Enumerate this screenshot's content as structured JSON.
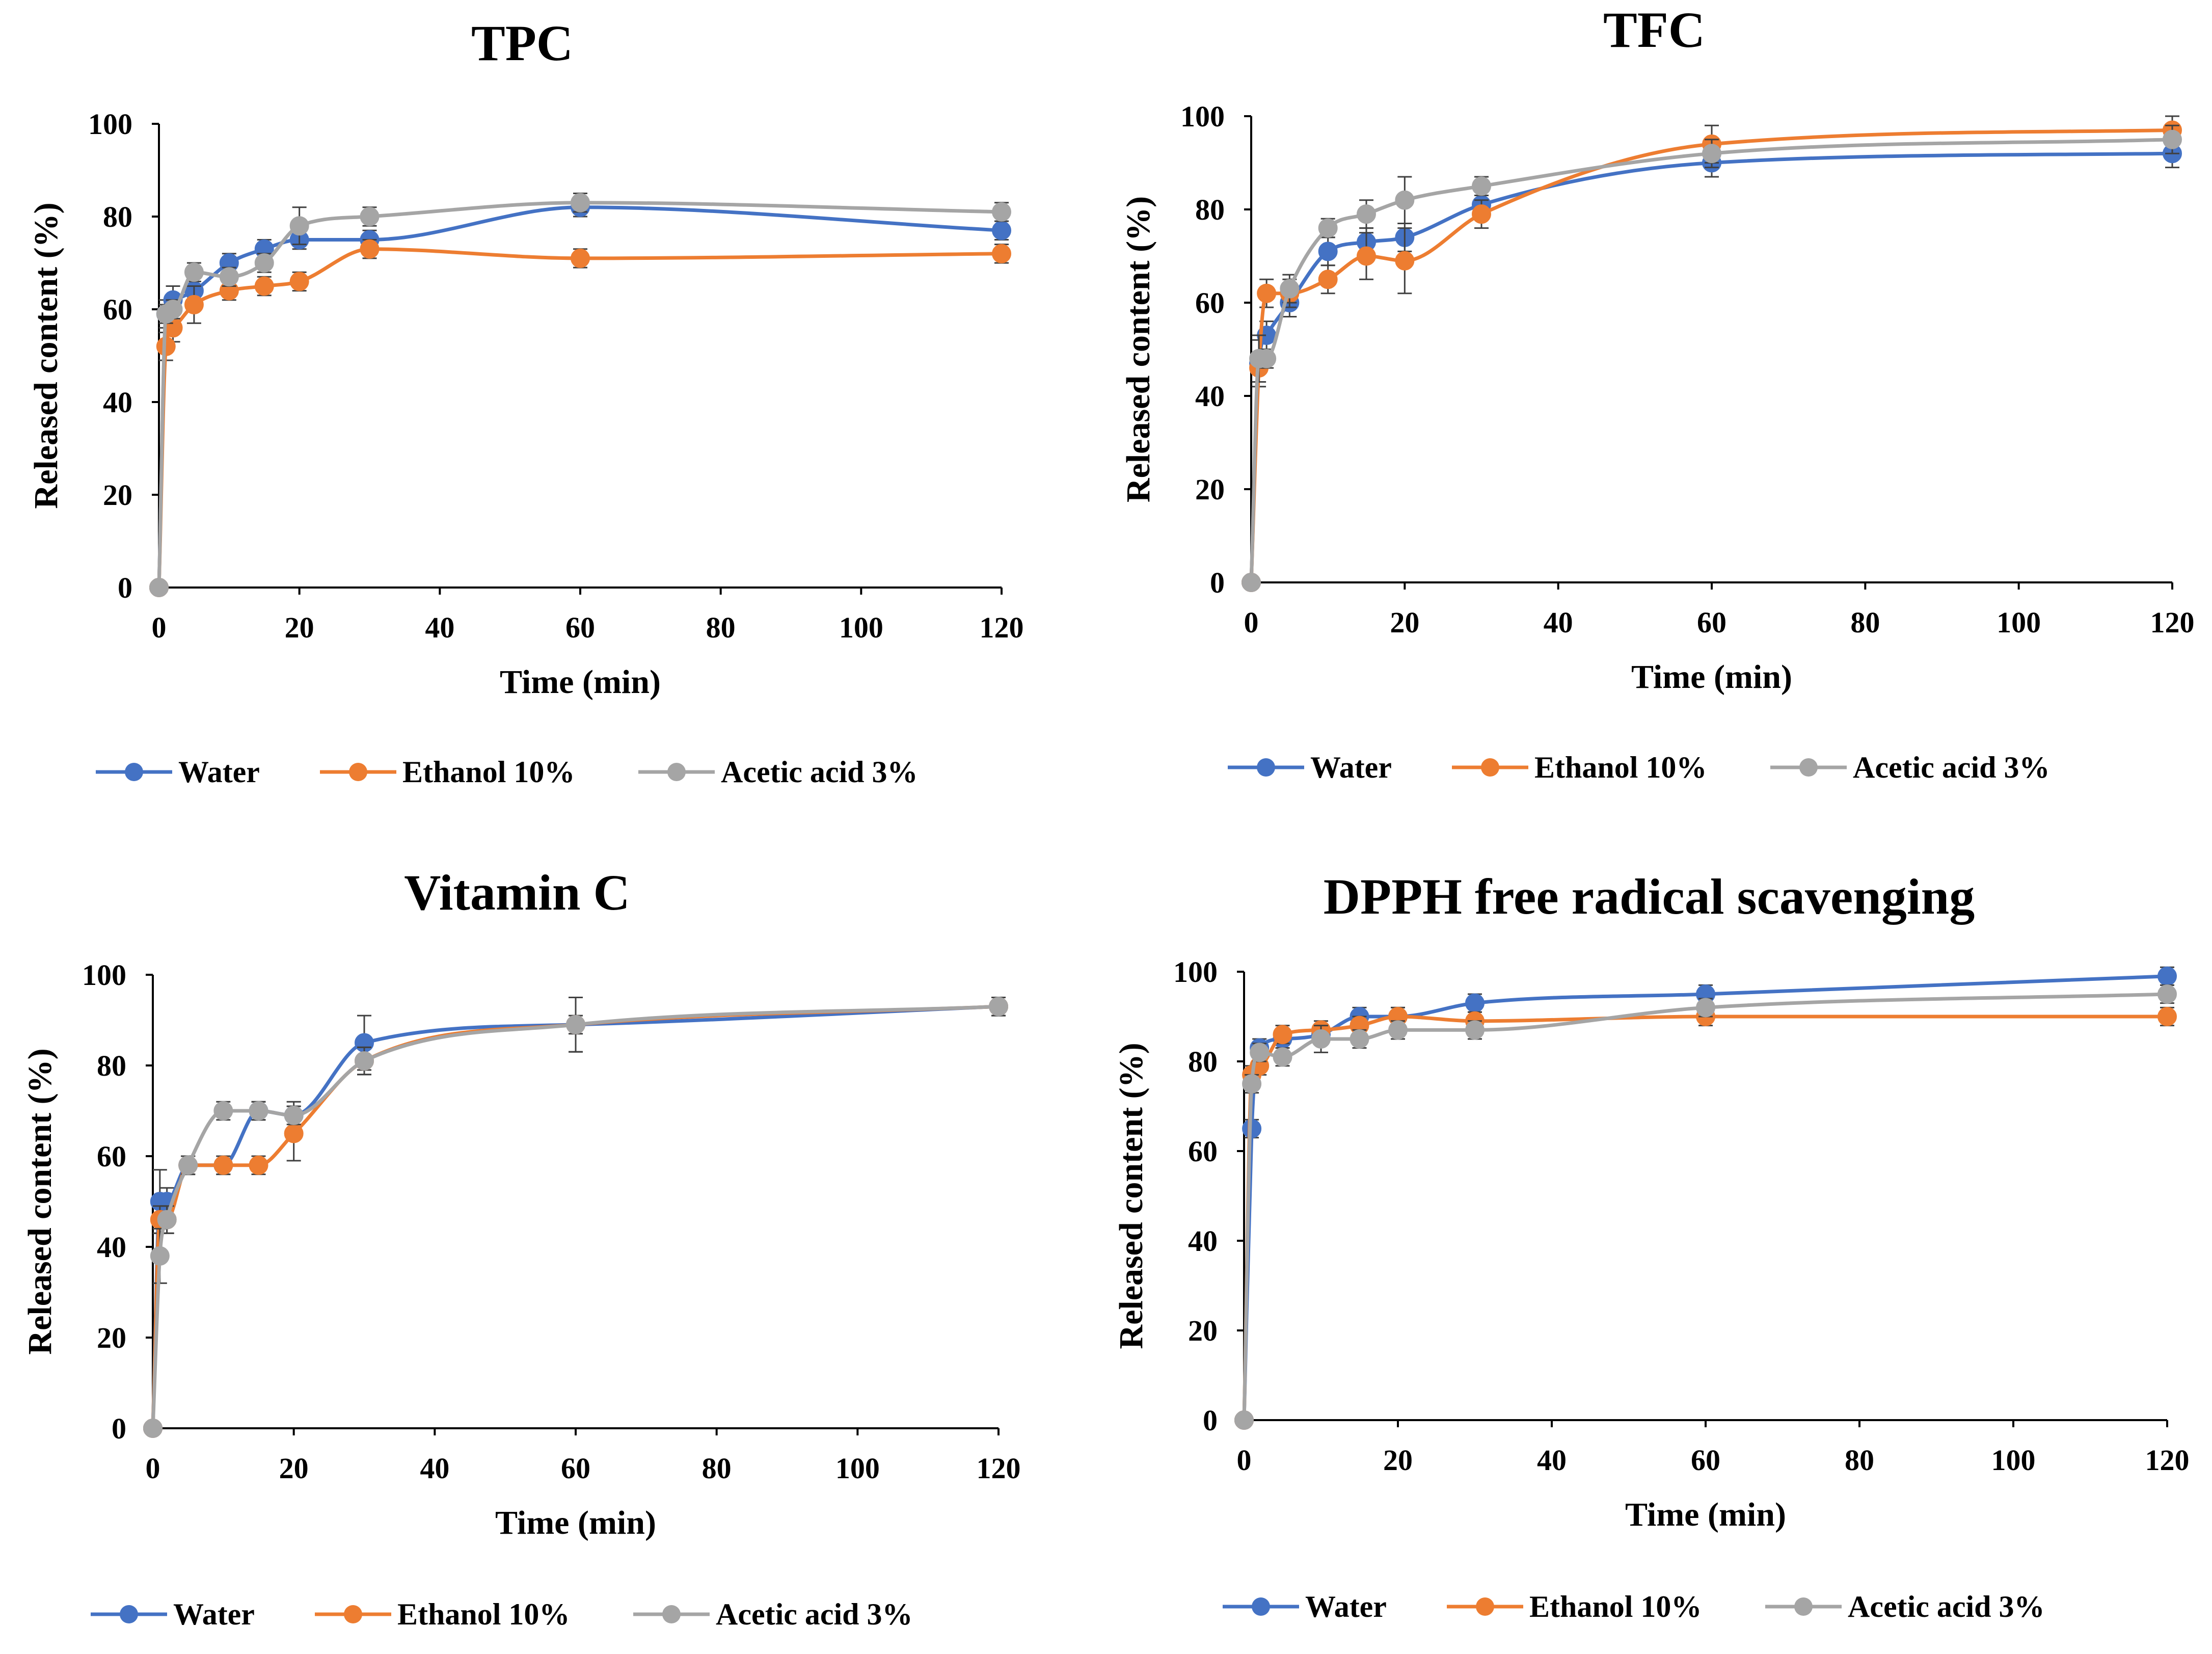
{
  "series_colors": {
    "Water": "#4472c4",
    "Ethanol 10%": "#ed7d31",
    "Acetic acid 3%": "#a5a5a5"
  },
  "chart_data": [
    {
      "type": "line",
      "title": "TPC",
      "xlabel": "Time (min)",
      "ylabel": "Released content (%)",
      "xlim": [
        0,
        120
      ],
      "ylim": [
        0,
        100
      ],
      "xticks": [
        0,
        20,
        40,
        60,
        80,
        100,
        120
      ],
      "yticks": [
        0,
        20,
        40,
        60,
        80,
        100
      ],
      "legend": [
        "Water",
        "Ethanol 10%",
        "Acetic acid 3%"
      ],
      "legend_position": "bottom",
      "series": [
        {
          "name": "Water",
          "x": [
            0,
            1,
            2,
            5,
            10,
            15,
            20,
            30,
            60,
            120
          ],
          "y": [
            0,
            59,
            62,
            64,
            70,
            73,
            75,
            75,
            82,
            77
          ],
          "err": [
            0,
            3,
            3,
            3,
            2,
            2,
            2,
            2,
            2,
            2
          ]
        },
        {
          "name": "Ethanol 10%",
          "x": [
            0,
            1,
            2,
            5,
            10,
            15,
            20,
            30,
            60,
            120
          ],
          "y": [
            0,
            52,
            56,
            61,
            64,
            65,
            66,
            73,
            71,
            72
          ],
          "err": [
            0,
            3,
            3,
            4,
            2,
            2,
            2,
            2,
            2,
            2
          ]
        },
        {
          "name": "Acetic acid 3%",
          "x": [
            0,
            1,
            2,
            5,
            10,
            15,
            20,
            30,
            60,
            120
          ],
          "y": [
            0,
            59,
            60,
            68,
            67,
            70,
            78,
            80,
            83,
            81
          ],
          "err": [
            0,
            2,
            2,
            2,
            2,
            2,
            4,
            2,
            2,
            2
          ]
        }
      ]
    },
    {
      "type": "line",
      "title": "TFC",
      "xlabel": "Time (min)",
      "ylabel": "Released content (%)",
      "xlim": [
        0,
        120
      ],
      "ylim": [
        0,
        100
      ],
      "xticks": [
        0,
        20,
        40,
        60,
        80,
        100,
        120
      ],
      "yticks": [
        0,
        20,
        40,
        60,
        80,
        100
      ],
      "legend": [
        "Water",
        "Ethanol 10%",
        "Acetic acid 3%"
      ],
      "legend_position": "bottom",
      "series": [
        {
          "name": "Water",
          "x": [
            0,
            1,
            2,
            5,
            10,
            15,
            20,
            30,
            60,
            120
          ],
          "y": [
            0,
            47,
            53,
            60,
            71,
            73,
            74,
            81,
            90,
            92
          ],
          "err": [
            0,
            5,
            3,
            3,
            3,
            3,
            3,
            3,
            3,
            3
          ]
        },
        {
          "name": "Ethanol 10%",
          "x": [
            0,
            1,
            2,
            5,
            10,
            15,
            20,
            30,
            60,
            120
          ],
          "y": [
            0,
            46,
            62,
            62,
            65,
            70,
            69,
            79,
            94,
            97
          ],
          "err": [
            0,
            3,
            3,
            3,
            3,
            5,
            7,
            3,
            4,
            3
          ]
        },
        {
          "name": "Acetic acid 3%",
          "x": [
            0,
            1,
            2,
            5,
            10,
            15,
            20,
            30,
            60,
            120
          ],
          "y": [
            0,
            48,
            48,
            63,
            76,
            79,
            82,
            85,
            92,
            95
          ],
          "err": [
            0,
            5,
            2,
            3,
            2,
            3,
            5,
            2,
            3,
            3
          ]
        }
      ]
    },
    {
      "type": "line",
      "title": "Vitamin C",
      "xlabel": "Time (min)",
      "ylabel": "Released content (%)",
      "xlim": [
        0,
        120
      ],
      "ylim": [
        0,
        100
      ],
      "xticks": [
        0,
        20,
        40,
        60,
        80,
        100,
        120
      ],
      "yticks": [
        0,
        20,
        40,
        60,
        80,
        100
      ],
      "legend": [
        "Water",
        "Ethanol 10%",
        "Acetic acid 3%"
      ],
      "legend_position": "bottom",
      "series": [
        {
          "name": "Water",
          "x": [
            0,
            1,
            2,
            5,
            10,
            15,
            20,
            30,
            60,
            120
          ],
          "y": [
            0,
            50,
            50,
            58,
            58,
            70,
            69,
            85,
            89,
            93
          ],
          "err": [
            0,
            7,
            3,
            2,
            2,
            2,
            3,
            6,
            2,
            2
          ]
        },
        {
          "name": "Ethanol 10%",
          "x": [
            0,
            1,
            2,
            5,
            10,
            15,
            20,
            30,
            60,
            120
          ],
          "y": [
            0,
            46,
            46,
            58,
            58,
            58,
            65,
            81,
            89,
            93
          ],
          "err": [
            0,
            3,
            3,
            2,
            2,
            2,
            6,
            3,
            6,
            2
          ]
        },
        {
          "name": "Acetic acid 3%",
          "x": [
            0,
            1,
            2,
            5,
            10,
            15,
            20,
            30,
            60,
            120
          ],
          "y": [
            0,
            38,
            46,
            58,
            70,
            70,
            69,
            81,
            89,
            93
          ],
          "err": [
            0,
            6,
            3,
            2,
            2,
            2,
            2,
            3,
            6,
            2
          ]
        }
      ]
    },
    {
      "type": "line",
      "title": "DPPH free radical scavenging",
      "xlabel": "Time (min)",
      "ylabel": "Released content (%)",
      "xlim": [
        0,
        120
      ],
      "ylim": [
        0,
        100
      ],
      "xticks": [
        0,
        20,
        40,
        60,
        80,
        100,
        120
      ],
      "yticks": [
        0,
        20,
        40,
        60,
        80,
        100
      ],
      "legend": [
        "Water",
        "Ethanol 10%",
        "Acetic acid 3%"
      ],
      "legend_position": "bottom",
      "series": [
        {
          "name": "Water",
          "x": [
            0,
            1,
            2,
            5,
            10,
            15,
            20,
            30,
            60,
            120
          ],
          "y": [
            0,
            65,
            83,
            85,
            86,
            90,
            90,
            93,
            95,
            99
          ],
          "err": [
            0,
            2,
            2,
            2,
            2,
            2,
            2,
            2,
            2,
            2
          ]
        },
        {
          "name": "Ethanol 10%",
          "x": [
            0,
            1,
            2,
            5,
            10,
            15,
            20,
            30,
            60,
            120
          ],
          "y": [
            0,
            77,
            79,
            86,
            87,
            88,
            90,
            89,
            90,
            90
          ],
          "err": [
            0,
            2,
            2,
            2,
            2,
            2,
            2,
            2,
            2,
            2
          ]
        },
        {
          "name": "Acetic acid 3%",
          "x": [
            0,
            1,
            2,
            5,
            10,
            15,
            20,
            30,
            60,
            120
          ],
          "y": [
            0,
            75,
            82,
            81,
            85,
            85,
            87,
            87,
            92,
            95
          ],
          "err": [
            0,
            2,
            2,
            2,
            3,
            2,
            2,
            2,
            2,
            2
          ]
        }
      ]
    }
  ]
}
